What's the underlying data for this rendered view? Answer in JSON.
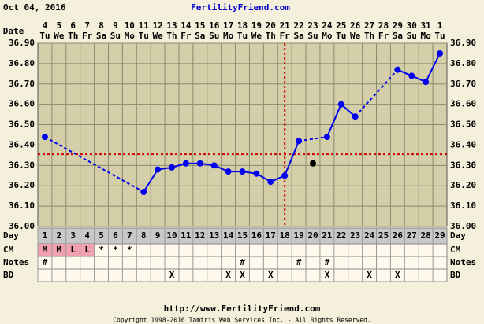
{
  "chart_data": {
    "type": "line",
    "title": "FertilityFriend.com",
    "date": "Oct 04, 2016",
    "date_label": "Date",
    "categories": [
      "4",
      "5",
      "6",
      "7",
      "8",
      "9",
      "10",
      "11",
      "12",
      "13",
      "14",
      "15",
      "16",
      "17",
      "18",
      "19",
      "20",
      "21",
      "22",
      "23",
      "24",
      "25",
      "26",
      "27",
      "28",
      "29",
      "30",
      "31",
      "1"
    ],
    "weekdays": [
      "Tu",
      "We",
      "Th",
      "Fr",
      "Sa",
      "Su",
      "Mo",
      "Tu",
      "We",
      "Th",
      "Fr",
      "Sa",
      "Su",
      "Mo",
      "Tu",
      "We",
      "Th",
      "Fr",
      "Sa",
      "Su",
      "Mo",
      "Tu",
      "We",
      "Th",
      "Fr",
      "Sa",
      "Su",
      "Mo",
      "Tu"
    ],
    "ylim": [
      36.0,
      36.9
    ],
    "yticks": [
      {
        "value": 36.0,
        "label": "36.00"
      },
      {
        "value": 36.1,
        "label": "36.10"
      },
      {
        "value": 36.2,
        "label": "36.20"
      },
      {
        "value": 36.3,
        "label": "36.30"
      },
      {
        "value": 36.4,
        "label": "36.40"
      },
      {
        "value": 36.5,
        "label": "36.50"
      },
      {
        "value": 36.6,
        "label": "36.60"
      },
      {
        "value": 36.7,
        "label": "36.70"
      },
      {
        "value": 36.8,
        "label": "36.80"
      },
      {
        "value": 36.9,
        "label": "36.90"
      }
    ],
    "grid": true,
    "series": [
      {
        "name": "Temperature",
        "color": "#0000ee",
        "values": [
          36.44,
          null,
          null,
          null,
          null,
          null,
          null,
          36.17,
          36.28,
          36.29,
          36.31,
          36.31,
          36.3,
          36.27,
          36.27,
          36.26,
          36.22,
          36.25,
          36.42,
          null,
          36.44,
          36.6,
          36.54,
          null,
          null,
          36.77,
          36.74,
          36.71,
          36.85
        ]
      }
    ],
    "excluded": {
      "color": "#000000",
      "values": [
        null,
        null,
        null,
        null,
        null,
        null,
        null,
        null,
        null,
        null,
        null,
        null,
        null,
        null,
        null,
        null,
        null,
        null,
        null,
        36.31,
        null,
        null,
        null,
        null,
        null,
        null,
        null,
        null,
        null
      ]
    },
    "coverline": 36.355,
    "ovulation_category": "21",
    "marker_color": "#cc0000",
    "rows": [
      {
        "label": "Day",
        "values": [
          "1",
          "2",
          "3",
          "4",
          "5",
          "6",
          "7",
          "8",
          "9",
          "10",
          "11",
          "12",
          "13",
          "14",
          "15",
          "16",
          "17",
          "18",
          "19",
          "20",
          "21",
          "22",
          "23",
          "24",
          "25",
          "26",
          "27",
          "28",
          "29"
        ],
        "background": "#c8c8c8"
      },
      {
        "label": "CM",
        "values": [
          "M",
          "M",
          "L",
          "L",
          "*",
          "*",
          "*",
          null,
          null,
          null,
          null,
          null,
          null,
          null,
          null,
          null,
          null,
          null,
          null,
          null,
          null,
          null,
          null,
          null,
          null,
          null,
          null,
          null,
          null
        ],
        "background": "#fff8ec",
        "highlight_values": [
          "M",
          "L"
        ],
        "highlight": "#f0a0b0"
      },
      {
        "label": "Notes",
        "values": [
          "#",
          null,
          null,
          null,
          null,
          null,
          null,
          null,
          null,
          null,
          null,
          null,
          null,
          null,
          "#",
          null,
          null,
          null,
          "#",
          null,
          "#",
          null,
          null,
          null,
          null,
          null,
          null,
          null,
          null
        ],
        "background": "#fff8ec"
      },
      {
        "label": "BD",
        "values": [
          null,
          null,
          null,
          null,
          null,
          null,
          null,
          null,
          null,
          "X",
          null,
          null,
          null,
          "X",
          "X",
          null,
          "X",
          null,
          null,
          null,
          "X",
          null,
          null,
          "X",
          null,
          "X",
          null,
          null,
          null
        ],
        "background": "#fff8ec"
      }
    ],
    "footer_url": "http://www.FertilityFriend.com",
    "copyright": "Copyright 1998-2016 Tamtris Web Services Inc. - All Rights Reserved."
  }
}
